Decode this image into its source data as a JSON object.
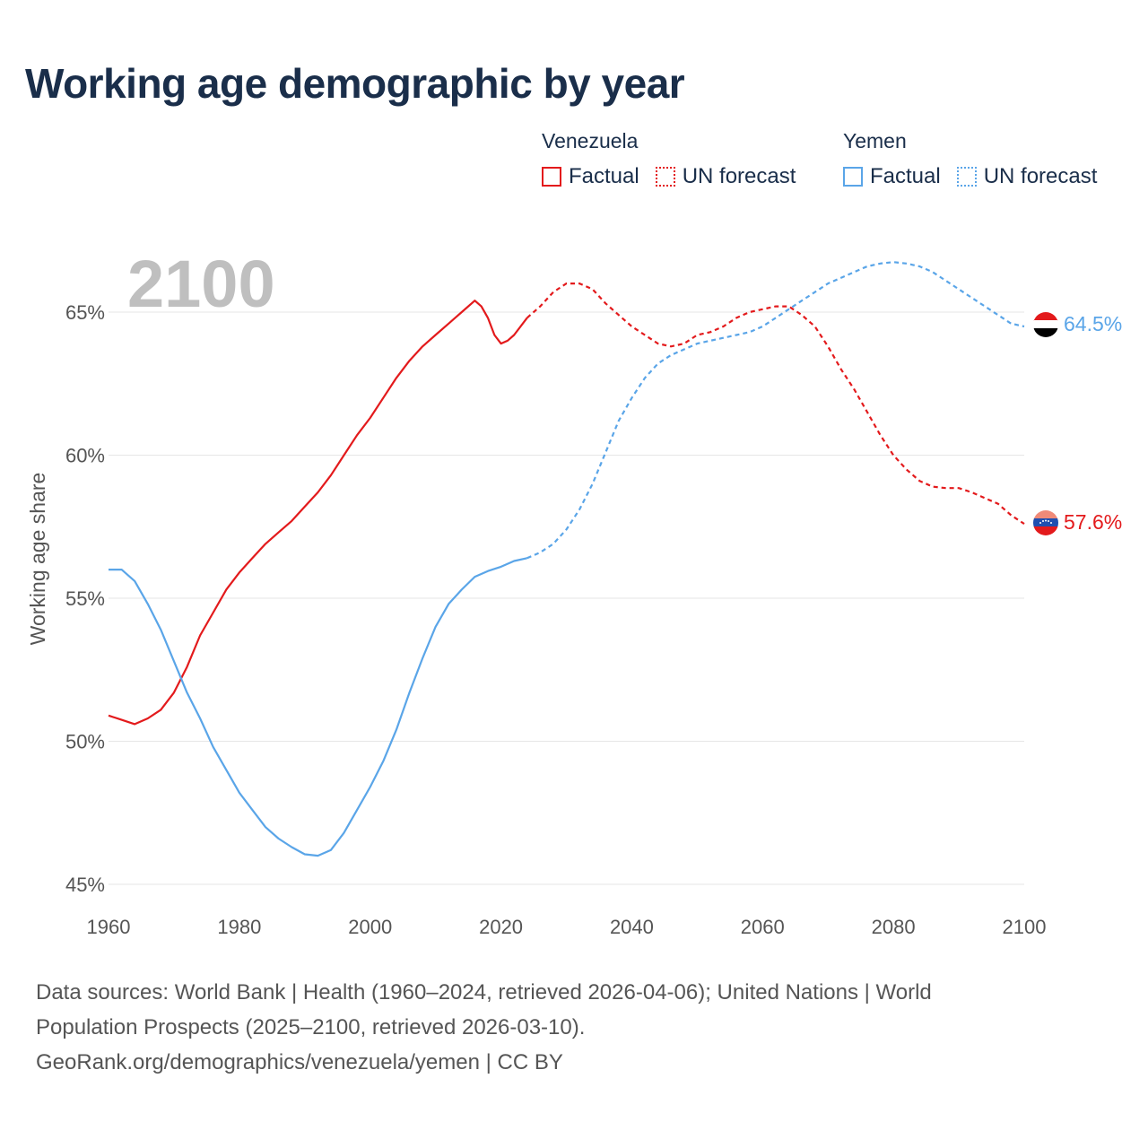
{
  "title": "Working age demographic by year",
  "legend": {
    "groups": [
      {
        "name": "Venezuela",
        "factual_label": "Factual",
        "forecast_label": "UN forecast"
      },
      {
        "name": "Yemen",
        "factual_label": "Factual",
        "forecast_label": "UN forecast"
      }
    ]
  },
  "footer": {
    "line1": "Data sources: World Bank | Health (1960–2024, retrieved 2026-04-06); United Nations | World",
    "line2": "Population Prospects (2025–2100, retrieved 2026-03-10).",
    "line3": "GeoRank.org/demographics/venezuela/yemen | CC BY"
  },
  "colors": {
    "venezuela": "#e31a1c",
    "yemen": "#5aa5e8",
    "grid": "#e6e6e6",
    "axis_text": "#555555",
    "year_watermark": "#bfbfbf"
  },
  "chart_data": {
    "type": "line",
    "ylabel": "Working age share",
    "xlabel": "",
    "year_label": "2100",
    "xlim": [
      1960,
      2100
    ],
    "ylim": [
      45,
      66.5
    ],
    "x_ticks": [
      "1960",
      "1980",
      "2000",
      "2020",
      "2040",
      "2060",
      "2080",
      "2100"
    ],
    "y_ticks": [
      {
        "value": 45,
        "label": "45%"
      },
      {
        "value": 50,
        "label": "50%"
      },
      {
        "value": 55,
        "label": "55%"
      },
      {
        "value": 60,
        "label": "60%"
      },
      {
        "value": 65,
        "label": "65%"
      }
    ],
    "forecast_start": 2024,
    "series": [
      {
        "name": "Venezuela",
        "color": "#e31a1c",
        "end_label": "57.6%",
        "points": [
          [
            1960,
            50.9
          ],
          [
            1962,
            50.75
          ],
          [
            1964,
            50.6
          ],
          [
            1966,
            50.8
          ],
          [
            1968,
            51.1
          ],
          [
            1970,
            51.7
          ],
          [
            1972,
            52.6
          ],
          [
            1974,
            53.7
          ],
          [
            1976,
            54.5
          ],
          [
            1978,
            55.3
          ],
          [
            1980,
            55.9
          ],
          [
            1982,
            56.4
          ],
          [
            1984,
            56.9
          ],
          [
            1986,
            57.3
          ],
          [
            1988,
            57.7
          ],
          [
            1990,
            58.2
          ],
          [
            1992,
            58.7
          ],
          [
            1994,
            59.3
          ],
          [
            1996,
            60.0
          ],
          [
            1998,
            60.7
          ],
          [
            2000,
            61.3
          ],
          [
            2002,
            62.0
          ],
          [
            2004,
            62.7
          ],
          [
            2006,
            63.3
          ],
          [
            2008,
            63.8
          ],
          [
            2010,
            64.2
          ],
          [
            2012,
            64.6
          ],
          [
            2014,
            65.0
          ],
          [
            2016,
            65.4
          ],
          [
            2017,
            65.2
          ],
          [
            2018,
            64.8
          ],
          [
            2019,
            64.2
          ],
          [
            2020,
            63.9
          ],
          [
            2021,
            64.0
          ],
          [
            2022,
            64.2
          ],
          [
            2024,
            64.8
          ],
          [
            2026,
            65.2
          ],
          [
            2028,
            65.7
          ],
          [
            2030,
            66.0
          ],
          [
            2032,
            66.0
          ],
          [
            2034,
            65.8
          ],
          [
            2036,
            65.3
          ],
          [
            2038,
            64.9
          ],
          [
            2040,
            64.5
          ],
          [
            2042,
            64.2
          ],
          [
            2044,
            63.9
          ],
          [
            2046,
            63.8
          ],
          [
            2048,
            63.9
          ],
          [
            2050,
            64.2
          ],
          [
            2052,
            64.3
          ],
          [
            2054,
            64.5
          ],
          [
            2056,
            64.8
          ],
          [
            2058,
            65.0
          ],
          [
            2060,
            65.1
          ],
          [
            2062,
            65.2
          ],
          [
            2064,
            65.2
          ],
          [
            2066,
            64.9
          ],
          [
            2068,
            64.5
          ],
          [
            2070,
            63.8
          ],
          [
            2072,
            63.0
          ],
          [
            2074,
            62.3
          ],
          [
            2076,
            61.5
          ],
          [
            2078,
            60.7
          ],
          [
            2080,
            60.0
          ],
          [
            2082,
            59.5
          ],
          [
            2084,
            59.1
          ],
          [
            2086,
            58.9
          ],
          [
            2088,
            58.85
          ],
          [
            2090,
            58.85
          ],
          [
            2092,
            58.7
          ],
          [
            2094,
            58.5
          ],
          [
            2096,
            58.3
          ],
          [
            2098,
            57.9
          ],
          [
            2100,
            57.6
          ]
        ]
      },
      {
        "name": "Yemen",
        "color": "#5aa5e8",
        "end_label": "64.5%",
        "points": [
          [
            1960,
            56.0
          ],
          [
            1962,
            56.0
          ],
          [
            1964,
            55.6
          ],
          [
            1966,
            54.8
          ],
          [
            1968,
            53.9
          ],
          [
            1970,
            52.8
          ],
          [
            1972,
            51.7
          ],
          [
            1974,
            50.8
          ],
          [
            1976,
            49.8
          ],
          [
            1978,
            49.0
          ],
          [
            1980,
            48.2
          ],
          [
            1982,
            47.6
          ],
          [
            1984,
            47.0
          ],
          [
            1986,
            46.6
          ],
          [
            1988,
            46.3
          ],
          [
            1990,
            46.05
          ],
          [
            1992,
            46.0
          ],
          [
            1994,
            46.2
          ],
          [
            1996,
            46.8
          ],
          [
            1998,
            47.6
          ],
          [
            2000,
            48.4
          ],
          [
            2002,
            49.3
          ],
          [
            2004,
            50.4
          ],
          [
            2006,
            51.7
          ],
          [
            2008,
            52.9
          ],
          [
            2010,
            54.0
          ],
          [
            2012,
            54.8
          ],
          [
            2014,
            55.3
          ],
          [
            2016,
            55.75
          ],
          [
            2018,
            55.95
          ],
          [
            2020,
            56.1
          ],
          [
            2022,
            56.3
          ],
          [
            2024,
            56.4
          ],
          [
            2026,
            56.6
          ],
          [
            2028,
            56.9
          ],
          [
            2030,
            57.4
          ],
          [
            2032,
            58.1
          ],
          [
            2034,
            59.0
          ],
          [
            2036,
            60.1
          ],
          [
            2038,
            61.2
          ],
          [
            2040,
            62.0
          ],
          [
            2042,
            62.7
          ],
          [
            2044,
            63.2
          ],
          [
            2046,
            63.5
          ],
          [
            2048,
            63.7
          ],
          [
            2050,
            63.9
          ],
          [
            2052,
            64.0
          ],
          [
            2054,
            64.1
          ],
          [
            2056,
            64.2
          ],
          [
            2058,
            64.3
          ],
          [
            2060,
            64.5
          ],
          [
            2062,
            64.8
          ],
          [
            2064,
            65.1
          ],
          [
            2066,
            65.4
          ],
          [
            2068,
            65.7
          ],
          [
            2070,
            66.0
          ],
          [
            2072,
            66.2
          ],
          [
            2074,
            66.4
          ],
          [
            2076,
            66.6
          ],
          [
            2078,
            66.7
          ],
          [
            2080,
            66.75
          ],
          [
            2082,
            66.7
          ],
          [
            2084,
            66.6
          ],
          [
            2086,
            66.4
          ],
          [
            2088,
            66.1
          ],
          [
            2090,
            65.8
          ],
          [
            2092,
            65.5
          ],
          [
            2094,
            65.2
          ],
          [
            2096,
            64.9
          ],
          [
            2098,
            64.6
          ],
          [
            2100,
            64.5
          ]
        ]
      }
    ]
  }
}
